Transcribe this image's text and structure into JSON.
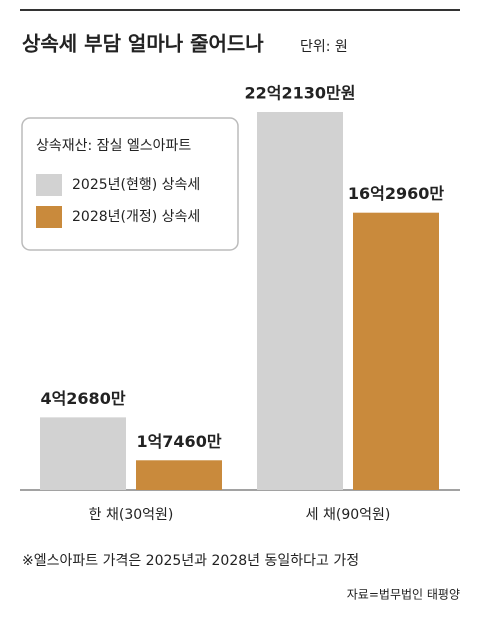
{
  "chart_data": {
    "type": "bar",
    "title": "상속세 부담 얼마나 줄어드나",
    "subtitle": "단위: 원",
    "legend_title": "상속재산: 잠실 엘스아파트",
    "categories": [
      "한 채(30억원)",
      "세 채(90억원)"
    ],
    "series": [
      {
        "name": "2025년(현행) 상속세",
        "color": "#d2d2d2",
        "values": [
          42680,
          222130
        ],
        "value_labels": [
          "4억2680만",
          "22억2130만원"
        ]
      },
      {
        "name": "2028년(개정) 상속세",
        "color": "#c98a3c",
        "values": [
          17460,
          162960
        ],
        "value_labels": [
          "1억7460만",
          "16억2960만"
        ]
      }
    ],
    "footnote": "※엘스아파트 가격은 2025년과 2028년 동일하다고 가정",
    "source": "자료=법무법인 태평양"
  }
}
